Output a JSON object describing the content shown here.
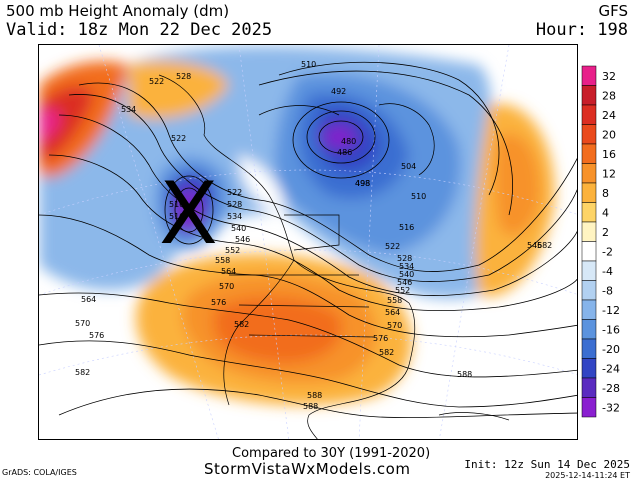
{
  "header": {
    "title": "500 mb Height Anomaly (dm)",
    "valid": "Valid: 18z Mon 22 Dec 2025",
    "model": "GFS",
    "hour": "Hour: 198"
  },
  "colorbar": {
    "ticks": [
      "32",
      "28",
      "24",
      "20",
      "16",
      "12",
      "8",
      "4",
      "2",
      "-2",
      "-4",
      "-8",
      "-12",
      "-16",
      "-20",
      "-24",
      "-28",
      "-32"
    ],
    "colors": [
      "#e8208a",
      "#c81e2a",
      "#dc2e22",
      "#ea4a1c",
      "#f26d1e",
      "#f7922a",
      "#fbb23c",
      "#fdd467",
      "#fff4c2",
      "#ffffff",
      "#d7e8f7",
      "#b2d1f1",
      "#86b4ea",
      "#5b93de",
      "#3b6ed1",
      "#3245c4",
      "#5a2bc0",
      "#8a1fd0"
    ]
  },
  "contour_labels": [
    "522",
    "534",
    "528",
    "522",
    "510",
    "516",
    "498",
    "492",
    "510",
    "480",
    "486",
    "498",
    "504",
    "510",
    "516",
    "522",
    "528",
    "534",
    "540",
    "546",
    "552",
    "558",
    "564",
    "570",
    "576",
    "582",
    "546",
    "582",
    "522",
    "528",
    "534",
    "540",
    "546",
    "552",
    "558",
    "564",
    "570",
    "576",
    "582",
    "588",
    "588",
    "588",
    "564",
    "570",
    "576",
    "582"
  ],
  "annotation": {
    "mark": "X"
  },
  "footer": {
    "compared": "Compared to 30Y (1991-2020)",
    "site": "StormVistaWxModels.com",
    "grads": "GrADS: COLA/IGES",
    "init": "Init: 12z Sun 14 Dec 2025",
    "stamp": "2025-12-14-11:24 ET"
  }
}
